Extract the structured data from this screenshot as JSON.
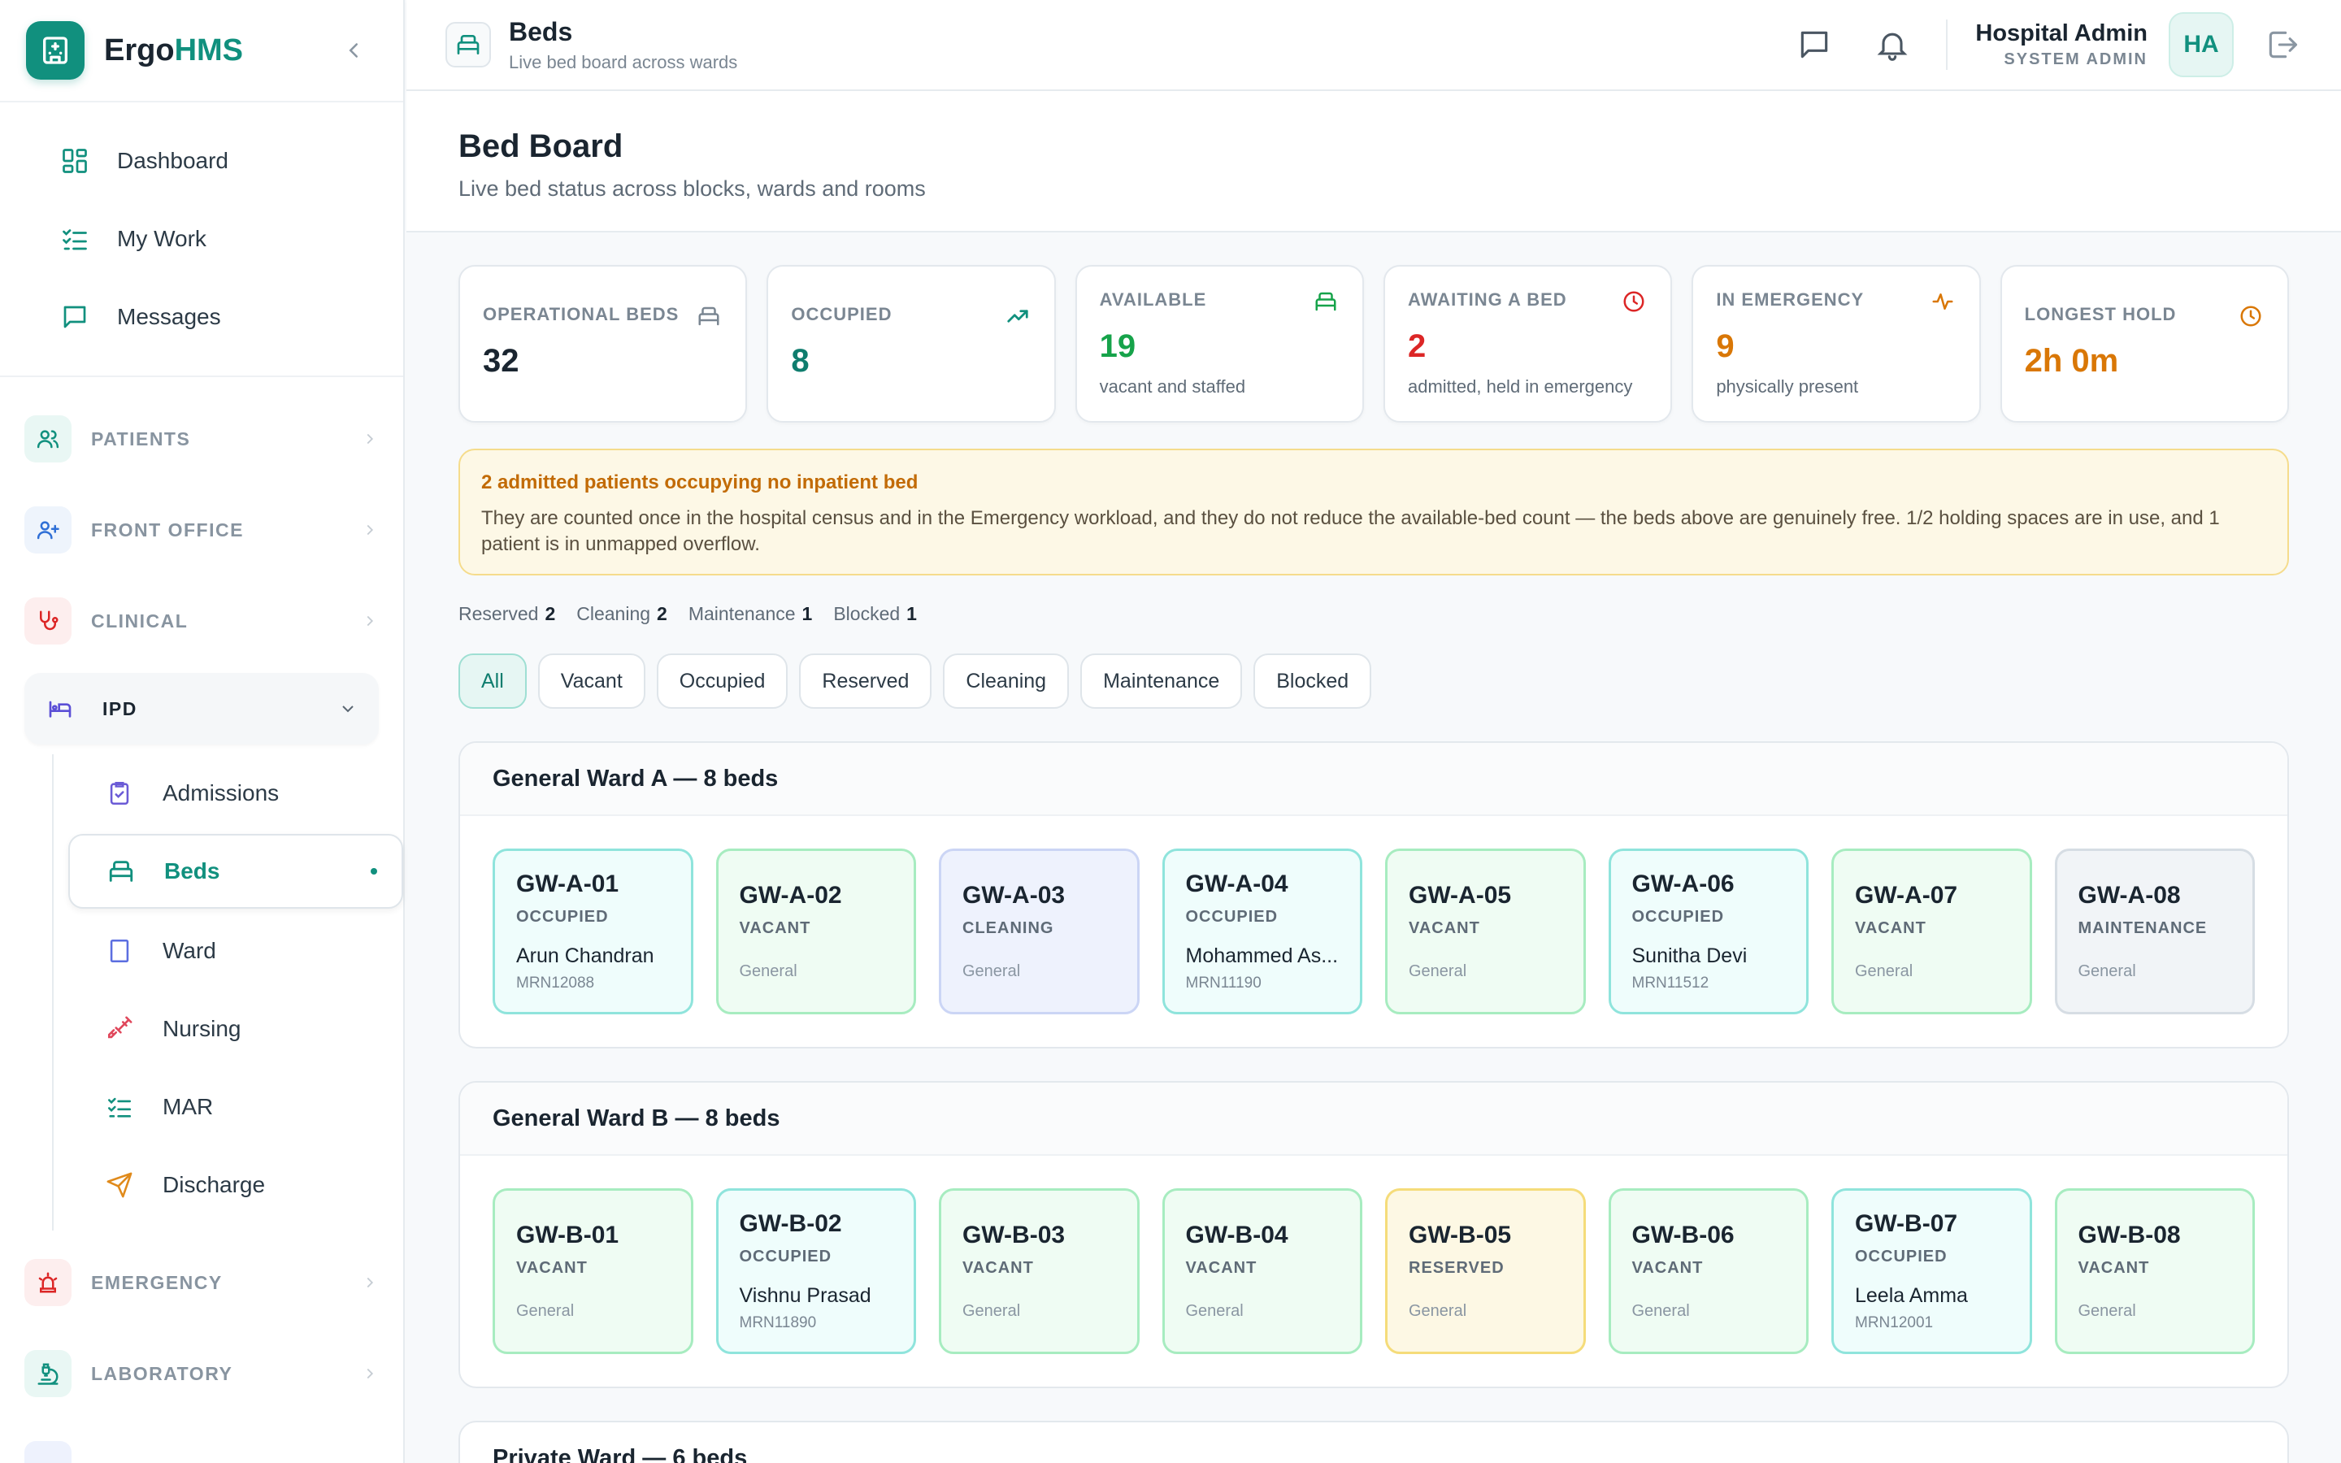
{
  "brand": {
    "name_prefix": "Ergo",
    "name_accent": "HMS"
  },
  "nav": {
    "top": [
      {
        "label": "Dashboard",
        "icon": "grid-icon"
      },
      {
        "label": "My Work",
        "icon": "checklist-icon"
      },
      {
        "label": "Messages",
        "icon": "chat-icon"
      }
    ],
    "sections": {
      "patients": "PATIENTS",
      "front_office": "FRONT OFFICE",
      "clinical": "CLINICAL",
      "ipd": "IPD",
      "emergency": "EMERGENCY",
      "laboratory": "LABORATORY"
    },
    "ipd_items": [
      {
        "label": "Admissions"
      },
      {
        "label": "Beds"
      },
      {
        "label": "Ward"
      },
      {
        "label": "Nursing"
      },
      {
        "label": "MAR"
      },
      {
        "label": "Discharge"
      }
    ]
  },
  "header": {
    "title": "Beds",
    "subtitle": "Live bed board across wards",
    "user_name": "Hospital Admin",
    "user_role": "SYSTEM ADMIN",
    "avatar": "HA"
  },
  "page": {
    "title": "Bed Board",
    "subtitle": "Live bed status across blocks, wards and rooms"
  },
  "stats": [
    {
      "label": "OPERATIONAL BEDS",
      "value": "32",
      "desc": "",
      "color": "#1a2530",
      "icon_color": "#7a8692"
    },
    {
      "label": "OCCUPIED",
      "value": "8",
      "desc": "",
      "color": "#0f7d6e",
      "icon_color": "#11907e"
    },
    {
      "label": "AVAILABLE",
      "value": "19",
      "desc": "vacant and staffed",
      "color": "#16a34a",
      "icon_color": "#16a34a"
    },
    {
      "label": "AWAITING A BED",
      "value": "2",
      "desc": "admitted, held in emergency",
      "color": "#dc2626",
      "icon_color": "#dc2626"
    },
    {
      "label": "IN EMERGENCY",
      "value": "9",
      "desc": "physically present",
      "color": "#d97706",
      "icon_color": "#d97706"
    },
    {
      "label": "LONGEST HOLD",
      "value": "2h 0m",
      "desc": "",
      "color": "#d97706",
      "icon_color": "#d97706"
    }
  ],
  "alert": {
    "title": "2 admitted patients occupying no inpatient bed",
    "body": "They are counted once in the hospital census and in the Emergency workload, and they do not reduce the available-bed count — the beds above are genuinely free. 1/2 holding spaces are in use, and 1 patient is in unmapped overflow."
  },
  "counts": [
    {
      "label": "Reserved",
      "value": "2"
    },
    {
      "label": "Cleaning",
      "value": "2"
    },
    {
      "label": "Maintenance",
      "value": "1"
    },
    {
      "label": "Blocked",
      "value": "1"
    }
  ],
  "filters": [
    "All",
    "Vacant",
    "Occupied",
    "Reserved",
    "Cleaning",
    "Maintenance",
    "Blocked"
  ],
  "wards": [
    {
      "title": "General Ward A — 8 beds",
      "beds": [
        {
          "code": "GW-A-01",
          "status": "OCCUPIED",
          "name": "Arun Chandran",
          "mrn": "MRN12088"
        },
        {
          "code": "GW-A-02",
          "status": "VACANT",
          "type": "General"
        },
        {
          "code": "GW-A-03",
          "status": "CLEANING",
          "type": "General"
        },
        {
          "code": "GW-A-04",
          "status": "OCCUPIED",
          "name": "Mohammed As...",
          "mrn": "MRN11190"
        },
        {
          "code": "GW-A-05",
          "status": "VACANT",
          "type": "General"
        },
        {
          "code": "GW-A-06",
          "status": "OCCUPIED",
          "name": "Sunitha Devi",
          "mrn": "MRN11512"
        },
        {
          "code": "GW-A-07",
          "status": "VACANT",
          "type": "General"
        },
        {
          "code": "GW-A-08",
          "status": "MAINTENANCE",
          "type": "General"
        }
      ]
    },
    {
      "title": "General Ward B — 8 beds",
      "beds": [
        {
          "code": "GW-B-01",
          "status": "VACANT",
          "type": "General"
        },
        {
          "code": "GW-B-02",
          "status": "OCCUPIED",
          "name": "Vishnu Prasad",
          "mrn": "MRN11890"
        },
        {
          "code": "GW-B-03",
          "status": "VACANT",
          "type": "General"
        },
        {
          "code": "GW-B-04",
          "status": "VACANT",
          "type": "General"
        },
        {
          "code": "GW-B-05",
          "status": "RESERVED",
          "type": "General"
        },
        {
          "code": "GW-B-06",
          "status": "VACANT",
          "type": "General"
        },
        {
          "code": "GW-B-07",
          "status": "OCCUPIED",
          "name": "Leela Amma",
          "mrn": "MRN12001"
        },
        {
          "code": "GW-B-08",
          "status": "VACANT",
          "type": "General"
        }
      ]
    },
    {
      "title": "Private Ward — 6 beds",
      "beds": []
    }
  ]
}
